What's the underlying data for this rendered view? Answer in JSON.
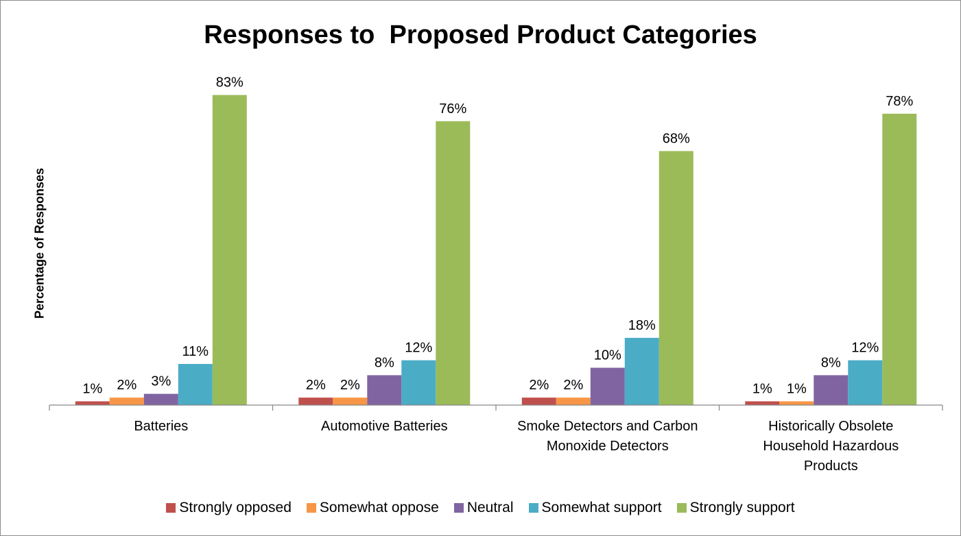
{
  "chart_data": {
    "type": "bar",
    "title": "Responses to  Proposed Product Categories",
    "xlabel": "",
    "ylabel": "Percentage of Responses",
    "ylim": [
      0,
      90
    ],
    "grid": false,
    "legend_position": "bottom",
    "categories": [
      "Batteries",
      "Automotive Batteries",
      "Smoke Detectors and Carbon Monoxide Detectors",
      "Historically Obsolete Household Hazardous Products"
    ],
    "category_label_lines": [
      [
        "Batteries"
      ],
      [
        "Automotive Batteries"
      ],
      [
        "Smoke Detectors and Carbon",
        "Monoxide Detectors"
      ],
      [
        "Historically Obsolete",
        "Household Hazardous",
        "Products"
      ]
    ],
    "series": [
      {
        "name": "Strongly opposed",
        "color": "#c0504d",
        "values": [
          1,
          2,
          2,
          1
        ],
        "labels": [
          "1%",
          "2%",
          "2%",
          "1%"
        ]
      },
      {
        "name": "Somewhat oppose",
        "color": "#f79646",
        "values": [
          2,
          2,
          2,
          1
        ],
        "labels": [
          "2%",
          "2%",
          "2%",
          "1%"
        ]
      },
      {
        "name": "Neutral",
        "color": "#8064a2",
        "values": [
          3,
          8,
          10,
          8
        ],
        "labels": [
          "3%",
          "8%",
          "10%",
          "8%"
        ]
      },
      {
        "name": "Somewhat support",
        "color": "#4bacc6",
        "values": [
          11,
          12,
          18,
          12
        ],
        "labels": [
          "11%",
          "12%",
          "18%",
          "12%"
        ]
      },
      {
        "name": "Strongly support",
        "color": "#9bbb59",
        "values": [
          83,
          76,
          68,
          78
        ],
        "labels": [
          "83%",
          "76%",
          "68%",
          "78%"
        ]
      }
    ]
  }
}
